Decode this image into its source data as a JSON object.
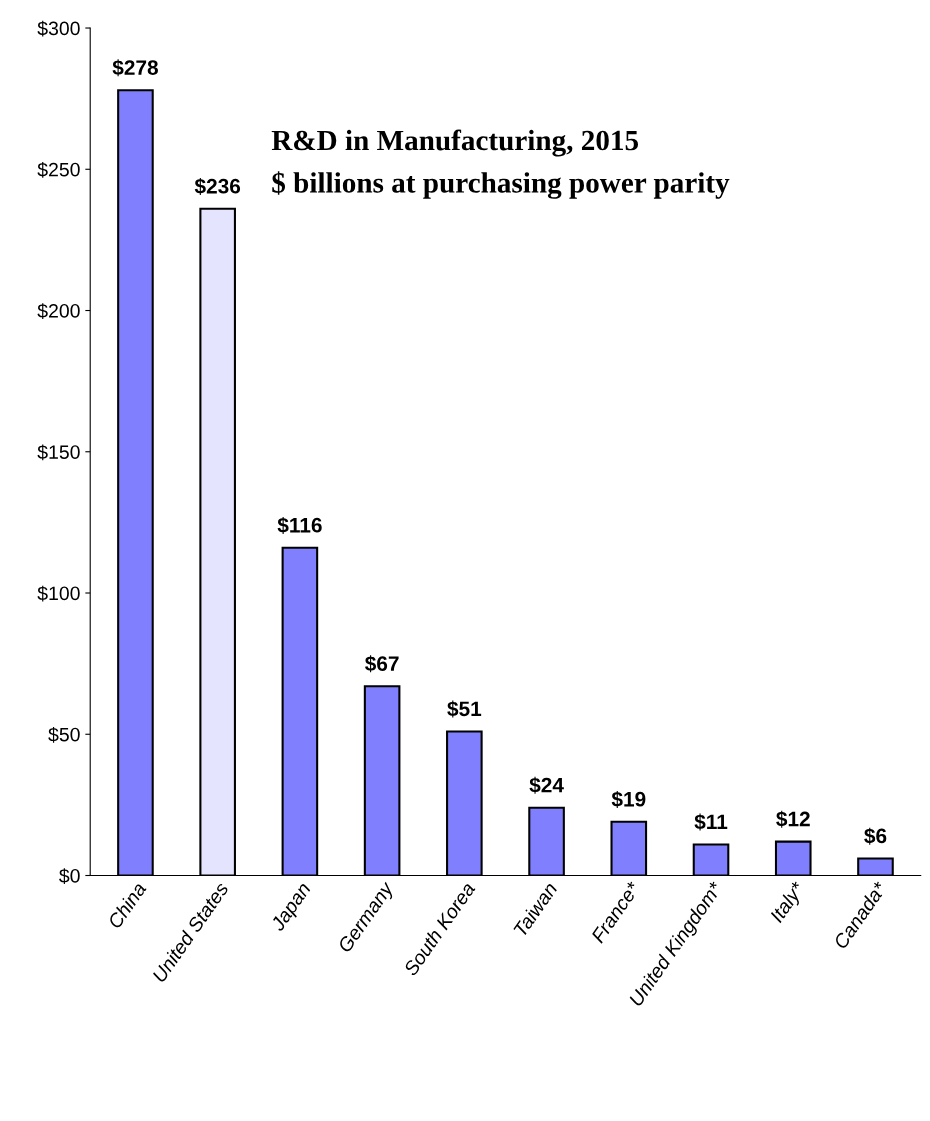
{
  "chart_data": {
    "type": "bar",
    "title": "R&D in Manufacturing, 2015",
    "subtitle": "$ billions at purchasing power parity",
    "categories": [
      "China",
      "United States",
      "Japan",
      "Germany",
      "South Korea",
      "Taiwan",
      "France*",
      "United Kingdom*",
      "Italy*",
      "Canada*"
    ],
    "values": [
      278,
      236,
      116,
      67,
      51,
      24,
      19,
      11,
      12,
      6
    ],
    "colors": [
      "#8080ff",
      "#e4e4ff",
      "#8080ff",
      "#8080ff",
      "#8080ff",
      "#8080ff",
      "#8080ff",
      "#8080ff",
      "#8080ff",
      "#8080ff"
    ],
    "value_labels": [
      "$278",
      "$236",
      "$116",
      "$67",
      "$51",
      "$24",
      "$19",
      "$11",
      "$12",
      "$6"
    ],
    "ylim": [
      0,
      300
    ],
    "yticks": [
      {
        "value": 0,
        "label": "$0"
      },
      {
        "value": 50,
        "label": "$50"
      },
      {
        "value": 100,
        "label": "$100"
      },
      {
        "value": 150,
        "label": "$150"
      },
      {
        "value": 200,
        "label": "$200"
      },
      {
        "value": 250,
        "label": "$250"
      },
      {
        "value": 300,
        "label": "$300"
      }
    ],
    "grid": false,
    "legend": false
  }
}
